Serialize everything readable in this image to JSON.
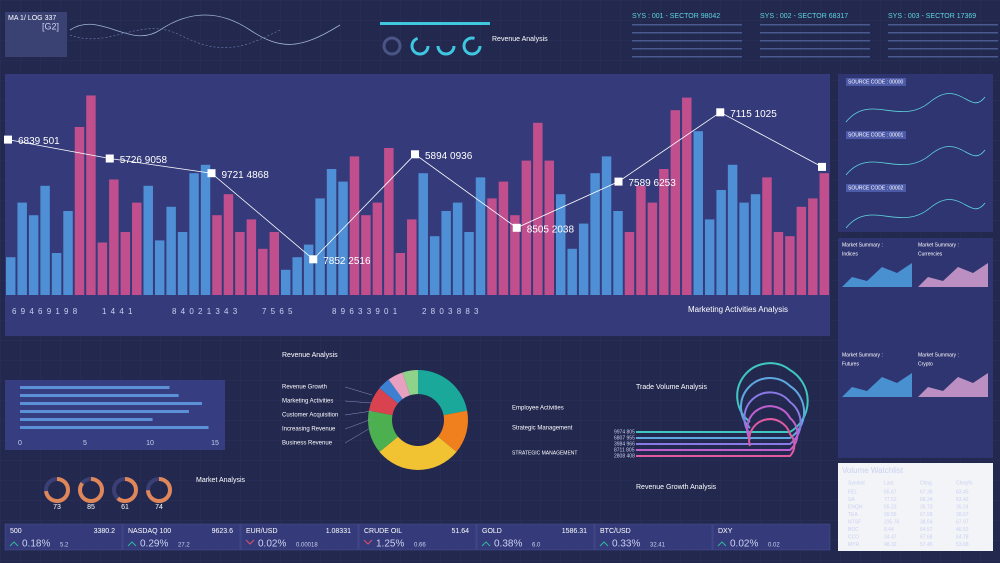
{
  "header": {
    "logo": "MA 1/ LOG 337",
    "code": "[G2]",
    "revenue_title": "Revenue Analysis",
    "sectors": [
      "SYS : 001 - SECTOR 98042",
      "SYS : 002 - SECTOR 68317",
      "SYS : 003 - SECTOR 17369"
    ]
  },
  "main_chart": {
    "type": "bar-line",
    "ylim": [
      0,
      100
    ],
    "bars": [
      18,
      44,
      38,
      52,
      20,
      40,
      80,
      95,
      25,
      55,
      30,
      44,
      52,
      26,
      42,
      30,
      58,
      62,
      38,
      48,
      30,
      36,
      22,
      30,
      12,
      18,
      24,
      46,
      60,
      54,
      66,
      38,
      44,
      70,
      20,
      36,
      58,
      28,
      40,
      44,
      30,
      56,
      46,
      54,
      38,
      64,
      82,
      64,
      48,
      22,
      34,
      58,
      66,
      40,
      30,
      52,
      44,
      60,
      88,
      94,
      78,
      36,
      50,
      62,
      44,
      48,
      56,
      30,
      28,
      42,
      46,
      58
    ],
    "bar_colors": [
      "#4f8fd6",
      "#c24f8d"
    ],
    "line": [
      74,
      65,
      58,
      17,
      67,
      32,
      54,
      87,
      61
    ],
    "point_labels": [
      "6839 501",
      "5726 9058",
      "9721 4868",
      "7852 2516",
      "5894 0936",
      "8505 2038",
      "7589 6253",
      "7115 1025"
    ],
    "digit_rows": [
      "6 9 4 6 9 1 9 8",
      "1 4 4 1",
      "8 4 0 2 1 3 4 3",
      "7 5 6 5",
      "8 9 6 3 3 9 0 1",
      "2 8 0 3 8 8 3"
    ],
    "caption": "Marketing Activities Analysis"
  },
  "hbar": {
    "values": [
      11.5,
      12.2,
      14,
      13,
      10.2,
      14.5
    ],
    "xlim": [
      0,
      15
    ],
    "xticks": [
      0,
      5,
      10,
      15
    ],
    "color": "#5b8fd6"
  },
  "gauges": {
    "values": [
      73,
      85,
      61,
      74
    ],
    "color": "#e0875a"
  },
  "market_analysis": "Market Analysis",
  "donut": {
    "title": "Revenue Analysis",
    "values": [
      22,
      14,
      28,
      14,
      8,
      4,
      5,
      5
    ],
    "colors": [
      "#1aa89a",
      "#f07f1d",
      "#f1c232",
      "#4caf50",
      "#d9434f",
      "#3d7fd1",
      "#e8a0c0",
      "#8fd28a"
    ],
    "left_labels": [
      "Revenue Growth",
      "Marketing Activities",
      "Customer Acquisition",
      "Increasing Revenue",
      "Business Revenue"
    ],
    "right_labels": [
      "Employee Activities",
      "Strategic Management"
    ],
    "note_title": "STRATEGIC MANAGEMENT"
  },
  "trade": {
    "title": "Trade Volume Analysis",
    "labels": [
      "9974 805",
      "6807 955",
      "3984 966",
      "8711 805",
      "2808 408"
    ],
    "colors": [
      "#3fc7c0",
      "#5ea7e0",
      "#8a7ae6",
      "#c060d0",
      "#e05aa0"
    ],
    "growth_title": "Revenue Growth Analysis"
  },
  "side": {
    "source_codes": [
      "SOURCE CODE : 00000",
      "SOURCE CODE : 00001",
      "SOURCE CODE : 00002"
    ],
    "summary": "Market Summary :",
    "tabs": [
      "Indices",
      "Currencies",
      "Futures",
      "Crypto"
    ]
  },
  "watchlist": {
    "title": "Volume Watchlist",
    "header": [
      "Symbol",
      "Last",
      "Chng",
      "Chng%"
    ],
    "rows": [
      [
        "FEL",
        "55.67",
        "67.36",
        "63.45"
      ],
      [
        "SA",
        "77.52",
        "68.24",
        "63.42"
      ],
      [
        "ENQH",
        "55.23",
        "35.73",
        "35.24"
      ],
      [
        "TEA",
        "99.55",
        "67.58",
        "38.67"
      ],
      [
        "NTSF",
        "235.76",
        "38.64",
        "67.97"
      ],
      [
        "BOC",
        "8.44",
        "64.57",
        "46.53"
      ],
      [
        "CCO",
        "34.47",
        "67.68",
        "64.78"
      ],
      [
        "MYR",
        "48.32",
        "57.45",
        "53.68"
      ]
    ]
  },
  "ticker": [
    {
      "name": "500",
      "price": "3380.2",
      "pct": "0.18%",
      "chg": "5.2",
      "direction": "up"
    },
    {
      "name": "NASDAQ 100",
      "price": "9623.6",
      "pct": "0.29%",
      "chg": "27.2",
      "direction": "up"
    },
    {
      "name": "EUR/USD",
      "price": "1.08331",
      "pct": "0.02%",
      "chg": "0.00018",
      "direction": "down"
    },
    {
      "name": "CRUDE OIL",
      "price": "51.64",
      "pct": "1.25%",
      "chg": "0.66",
      "direction": "down"
    },
    {
      "name": "GOLD",
      "price": "1586.31",
      "pct": "0.38%",
      "chg": "6.0",
      "direction": "up"
    },
    {
      "name": "BTC/USD",
      "pct": "0.33%",
      "chg": "32.41",
      "direction": "up"
    },
    {
      "name": "DXY",
      "pct": "0.02%",
      "chg": "0.02",
      "direction": "up"
    }
  ]
}
